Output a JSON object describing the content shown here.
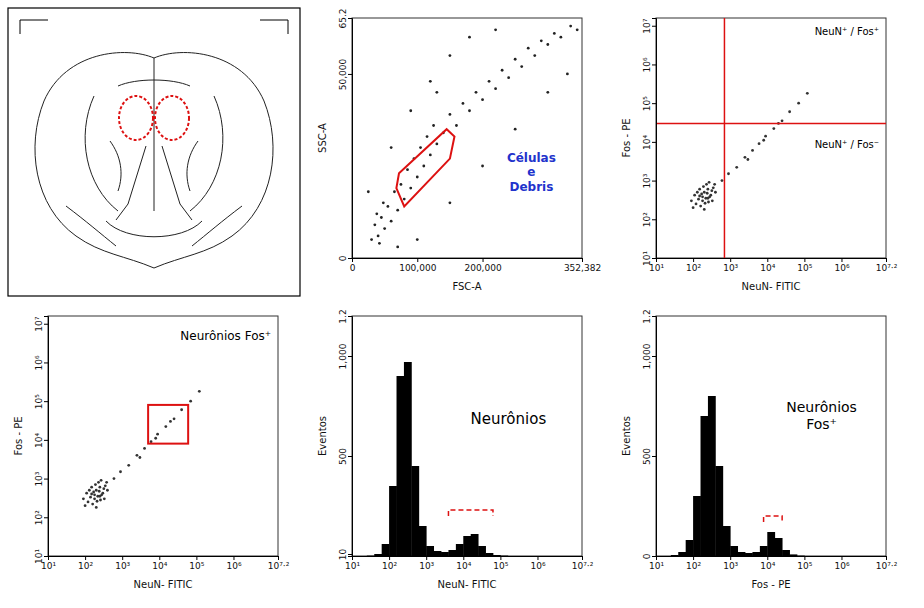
{
  "chart_data": [
    {
      "type": "scatter",
      "x_label": "FSC-A",
      "y_label": "SSC-A",
      "color": "#222222",
      "x": [
        30000,
        35000,
        40000,
        45000,
        50000,
        38000,
        55000,
        42000,
        60000,
        48000,
        65000,
        70000,
        75000,
        80000,
        85000,
        90000,
        95000,
        100000,
        105000,
        110000,
        115000,
        120000,
        125000,
        130000,
        140000,
        150000,
        160000,
        170000,
        180000,
        190000,
        200000,
        210000,
        220000,
        230000,
        240000,
        250000,
        260000,
        270000,
        280000,
        290000,
        300000,
        310000,
        320000,
        335000,
        345000,
        60000,
        90000,
        120000,
        150000,
        180000,
        100000,
        150000,
        200000,
        250000,
        300000,
        330000,
        25000,
        70000,
        130000,
        220000
      ],
      "values": [
        5000,
        9000,
        6000,
        11000,
        8000,
        12000,
        14000,
        4000,
        10000,
        15000,
        18000,
        13000,
        20000,
        16000,
        24000,
        19000,
        27000,
        22000,
        30000,
        25000,
        33000,
        28000,
        36000,
        31000,
        34000,
        39000,
        36000,
        42000,
        40000,
        45000,
        43000,
        48000,
        46000,
        51000,
        49000,
        54000,
        52000,
        57000,
        55000,
        59000,
        58000,
        61000,
        60000,
        63000,
        62000,
        30000,
        40000,
        48000,
        55000,
        60000,
        5000,
        15000,
        25000,
        35000,
        45000,
        50000,
        18000,
        3000,
        45000,
        62000
      ],
      "xlim": [
        0,
        352382
      ],
      "xticks": [
        0,
        {
          "value": 100000,
          "label": "100,000"
        },
        {
          "value": 200000,
          "label": "200,000"
        },
        {
          "value": 352382,
          "label": "352,382"
        }
      ],
      "ylim": [
        0,
        65200
      ],
      "yticks": [
        0,
        {
          "value": 50000,
          "label": "50,000"
        },
        {
          "value": 65200,
          "label": "65.2"
        }
      ],
      "gate": {
        "x": [
          68000,
          80000,
          150000,
          157000,
          145000,
          72000
        ],
        "y": [
          19000,
          14000,
          27000,
          33000,
          35000,
          23000
        ]
      },
      "annotation": [
        "Células",
        "e",
        "Debris"
      ]
    },
    {
      "type": "scatter",
      "x_label": "NeuN- FITIC",
      "y_label": "Fos - PE",
      "log": true,
      "color": "#333333",
      "x": [
        120,
        150,
        180,
        200,
        220,
        250,
        170,
        300,
        140,
        260,
        190,
        320,
        100,
        230,
        280,
        160,
        350,
        210,
        130,
        240,
        400,
        90,
        270,
        180,
        150,
        330,
        110,
        200,
        380,
        250,
        600,
        900,
        1500,
        2500,
        4000,
        6000,
        9000,
        15000,
        25000,
        40000,
        70000,
        120000,
        3000,
        8000,
        20000
      ],
      "values": [
        250,
        400,
        300,
        500,
        350,
        600,
        450,
        420,
        330,
        280,
        700,
        550,
        200,
        800,
        380,
        220,
        650,
        260,
        500,
        470,
        500,
        300,
        900,
        380,
        600,
        300,
        420,
        180,
        800,
        350,
        1000,
        1500,
        2200,
        4000,
        6000,
        9000,
        14000,
        22000,
        35000,
        60000,
        100000,
        180000,
        3500,
        11000,
        30000
      ],
      "xlim": [
        10,
        15848932
      ],
      "xticks": [
        {
          "value": 10,
          "label": "10¹"
        },
        {
          "value": 100,
          "label": "10²"
        },
        {
          "value": 1000,
          "label": "10³"
        },
        {
          "value": 10000,
          "label": "10⁴"
        },
        {
          "value": 100000,
          "label": "10⁵"
        },
        {
          "value": 1000000,
          "label": "10⁶"
        },
        {
          "value": 15848932,
          "label": "10⁷·²"
        }
      ],
      "ylim": [
        10,
        15848932
      ],
      "yticks": [
        {
          "value": 10,
          "label": "10¹"
        },
        {
          "value": 100,
          "label": "10²"
        },
        {
          "value": 1000,
          "label": "10³"
        },
        {
          "value": 10000,
          "label": "10⁴"
        },
        {
          "value": 100000,
          "label": "10⁵"
        },
        {
          "value": 1000000,
          "label": "10⁶"
        },
        {
          "value": 10000000,
          "label": "10⁷"
        }
      ],
      "quadrant": {
        "x": 700,
        "y": 30000
      },
      "annotations": [
        "NeuN⁺ / Fos⁺",
        "NeuN⁺ / Fos⁻"
      ]
    },
    {
      "type": "scatter",
      "x_label": "NeuN- FITIC",
      "y_label": "Fos - PE",
      "log": true,
      "color": "#333333",
      "x": [
        120,
        150,
        180,
        200,
        220,
        250,
        170,
        300,
        140,
        260,
        190,
        320,
        100,
        230,
        280,
        160,
        350,
        210,
        130,
        240,
        400,
        90,
        270,
        180,
        150,
        330,
        110,
        200,
        380,
        250,
        600,
        900,
        1500,
        2500,
        4000,
        6000,
        9000,
        15000,
        25000,
        40000,
        70000,
        120000,
        3000,
        8000,
        20000
      ],
      "values": [
        250,
        400,
        300,
        500,
        350,
        600,
        450,
        420,
        330,
        280,
        700,
        550,
        200,
        800,
        380,
        220,
        650,
        260,
        500,
        470,
        500,
        300,
        900,
        380,
        600,
        300,
        420,
        180,
        800,
        350,
        1000,
        1500,
        2200,
        4000,
        6000,
        9000,
        14000,
        22000,
        35000,
        60000,
        100000,
        180000,
        3500,
        11000,
        30000
      ],
      "xlim": [
        10,
        15848932
      ],
      "xticks": [
        {
          "value": 10,
          "label": "10¹"
        },
        {
          "value": 100,
          "label": "10²"
        },
        {
          "value": 1000,
          "label": "10³"
        },
        {
          "value": 10000,
          "label": "10⁴"
        },
        {
          "value": 100000,
          "label": "10⁵"
        },
        {
          "value": 1000000,
          "label": "10⁶"
        },
        {
          "value": 15848932,
          "label": "10⁷·²"
        }
      ],
      "ylim": [
        10,
        15848932
      ],
      "yticks": [
        {
          "value": 10,
          "label": "10¹"
        },
        {
          "value": 100,
          "label": "10²"
        },
        {
          "value": 1000,
          "label": "10³"
        },
        {
          "value": 10000,
          "label": "10⁴"
        },
        {
          "value": 100000,
          "label": "10⁵"
        },
        {
          "value": 1000000,
          "label": "10⁶"
        },
        {
          "value": 10000000,
          "label": "10⁷"
        }
      ],
      "gate": {
        "x": [
          5000,
          60000
        ],
        "y": [
          8000,
          80000
        ]
      },
      "annotation": [
        "Neurônios Fos⁺"
      ]
    },
    {
      "type": "histogram",
      "x_label": "NeuN- FITIC",
      "y_label": "Eventos",
      "log": "x",
      "color": "#000000",
      "bins": [
        10,
        15.85,
        25.12,
        39.81,
        63.1,
        100,
        158.5,
        251.2,
        398.1,
        631,
        1000,
        1585,
        2512,
        3981,
        6310,
        10000,
        15850,
        25120,
        39810,
        63100,
        100000,
        158500,
        251200,
        398100,
        631000,
        1000000,
        1585000,
        2512000,
        3981000,
        6310000,
        10000000,
        15848932
      ],
      "values": [
        0,
        0,
        2,
        10,
        60,
        350,
        900,
        970,
        450,
        150,
        50,
        25,
        20,
        30,
        60,
        100,
        110,
        50,
        15,
        5,
        2,
        0,
        0,
        0,
        0,
        0,
        0,
        0,
        0,
        0,
        0
      ],
      "xlim": [
        10,
        15848932
      ],
      "xticks": [
        {
          "value": 10,
          "label": "10¹"
        },
        {
          "value": 100,
          "label": "10²"
        },
        {
          "value": 1000,
          "label": "10³"
        },
        {
          "value": 10000,
          "label": "10⁴"
        },
        {
          "value": 100000,
          "label": "10⁵"
        },
        {
          "value": 1000000,
          "label": "10⁶"
        },
        {
          "value": 15848932,
          "label": "10⁷·²"
        }
      ],
      "ylim": [
        0,
        1200
      ],
      "yticks": [
        10,
        500,
        {
          "value": 1000,
          "label": "1,000"
        },
        {
          "value": 1200,
          "label": "1.2"
        }
      ],
      "gate": {
        "x": [
          3981,
          63100
        ],
        "y": 230
      },
      "annotation": [
        "Neurônios"
      ]
    },
    {
      "type": "histogram",
      "x_label": "Fos - PE",
      "y_label": "Eventos",
      "log": "x",
      "color": "#000000",
      "bins": [
        10,
        15.85,
        25.12,
        39.81,
        63.1,
        100,
        158.5,
        251.2,
        398.1,
        631,
        1000,
        1585,
        2512,
        3981,
        6310,
        10000,
        15850,
        25120,
        39810,
        63100,
        100000,
        158500,
        251200,
        398100,
        631000,
        1000000,
        1585000,
        2512000,
        3981000,
        6310000,
        10000000,
        15848932
      ],
      "values": [
        0,
        0,
        5,
        20,
        80,
        300,
        700,
        800,
        450,
        150,
        50,
        20,
        15,
        20,
        50,
        120,
        90,
        30,
        8,
        2,
        0,
        0,
        0,
        0,
        0,
        0,
        0,
        0,
        0,
        0,
        0
      ],
      "xlim": [
        10,
        15848932
      ],
      "xticks": [
        {
          "value": 10,
          "label": "10¹"
        },
        {
          "value": 100,
          "label": "10²"
        },
        {
          "value": 1000,
          "label": "10³"
        },
        {
          "value": 10000,
          "label": "10⁴"
        },
        {
          "value": 100000,
          "label": "10⁵"
        },
        {
          "value": 1000000,
          "label": "10⁶"
        },
        {
          "value": 15848932,
          "label": "10⁷·²"
        }
      ],
      "ylim": [
        0,
        1200
      ],
      "yticks": [
        0,
        500,
        {
          "value": 1000,
          "label": "1,000"
        },
        {
          "value": 1200,
          "label": "1.2"
        }
      ],
      "gate": {
        "x": [
          7943,
          25120
        ],
        "y": 200
      },
      "annotation": [
        "Neurônios",
        "Fos⁺"
      ]
    }
  ]
}
